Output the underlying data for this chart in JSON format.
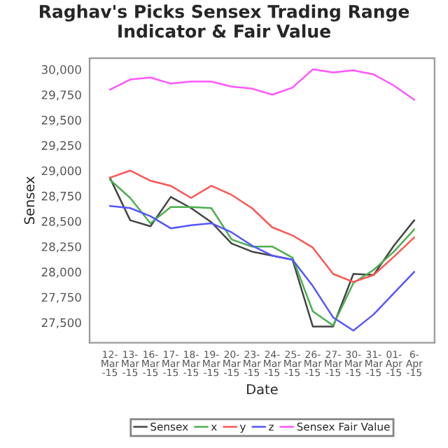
{
  "chart_data": {
    "type": "line",
    "title": "Raghav's Picks Sensex Trading Range Indicator & Fair Value",
    "xlabel": "Date",
    "ylabel": "Sensex",
    "categories": [
      "12-Mar-15",
      "13-Mar-15",
      "16-Mar-15",
      "17-Mar-15",
      "18-Mar-15",
      "19-Mar-15",
      "20-Mar-15",
      "23-Mar-15",
      "24-Mar-15",
      "25-Mar-15",
      "26-Mar-15",
      "27-Mar-15",
      "30-Mar-15",
      "31-Mar-15",
      "01-Apr-15",
      "6-Apr-15"
    ],
    "series": [
      {
        "name": "Sensex",
        "color": "#444444",
        "values": [
          28930,
          28510,
          28450,
          28740,
          28630,
          28490,
          28280,
          28200,
          28160,
          28120,
          27460,
          27460,
          27980,
          27970,
          28260,
          28510
        ]
      },
      {
        "name": "x",
        "color": "#4caf50",
        "values": [
          28910,
          28730,
          28480,
          28640,
          28640,
          28630,
          28320,
          28250,
          28250,
          28140,
          27610,
          27470,
          27890,
          28020,
          28200,
          28420
        ]
      },
      {
        "name": "y",
        "color": "#ff5555",
        "values": [
          28930,
          29000,
          28900,
          28850,
          28730,
          28850,
          28760,
          28630,
          28440,
          28360,
          28240,
          27980,
          27900,
          27970,
          28150,
          28340
        ]
      },
      {
        "name": "z",
        "color": "#5555ff",
        "values": [
          28650,
          28630,
          28550,
          28430,
          28460,
          28480,
          28390,
          28260,
          28160,
          28120,
          27860,
          27550,
          27420,
          27580,
          27790,
          28000
        ]
      },
      {
        "name": "Sensex Fair Value",
        "color": "#ff55ff",
        "values": [
          29800,
          29900,
          29920,
          29860,
          29880,
          29880,
          29830,
          29810,
          29750,
          29820,
          30000,
          29970,
          29990,
          29950,
          29840,
          29700
        ]
      }
    ],
    "ylim": [
      27300,
      30110
    ],
    "yticks": [
      {
        "value": 27500,
        "label": "27,500"
      },
      {
        "value": 27750,
        "label": "27,750"
      },
      {
        "value": 28000,
        "label": "28,000"
      },
      {
        "value": 28250,
        "label": "28,250"
      },
      {
        "value": 28500,
        "label": "28,500"
      },
      {
        "value": 28750,
        "label": "28,750"
      },
      {
        "value": 29000,
        "label": "29,000"
      },
      {
        "value": 29250,
        "label": "29,250"
      },
      {
        "value": 29500,
        "label": "29,500"
      },
      {
        "value": 29750,
        "label": "29,750"
      },
      {
        "value": 30000,
        "label": "30,000"
      }
    ],
    "grid": false,
    "legend": "bottom",
    "marker": "none",
    "line_style": "solid"
  }
}
